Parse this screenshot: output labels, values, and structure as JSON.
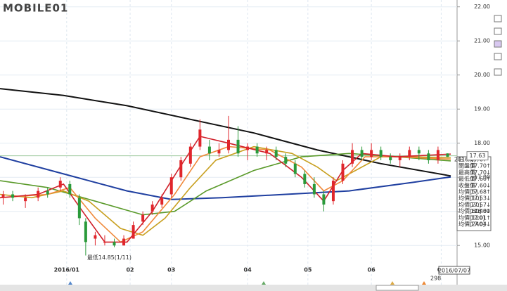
{
  "logo": "MOBILE01",
  "chart_data": {
    "type": "candlestick",
    "xlim": [
      0,
      144
    ],
    "ylim": [
      13.85,
      22.2
    ],
    "yticks": [
      {
        "value": 15,
        "label": "15.00"
      },
      {
        "value": 16,
        "label": "16.00"
      },
      {
        "value": 17,
        "label": "17.00"
      },
      {
        "value": 18,
        "label": "18.00"
      },
      {
        "value": 19,
        "label": "19.00"
      },
      {
        "value": 20,
        "label": "20.00"
      },
      {
        "value": 21,
        "label": "21.00"
      },
      {
        "value": 22,
        "label": "22.00"
      }
    ],
    "xticks": [
      {
        "value": 21,
        "label": "2016/01"
      },
      {
        "value": 41,
        "label": "02"
      },
      {
        "value": 54,
        "label": "03"
      },
      {
        "value": 78,
        "label": "04"
      },
      {
        "value": 97,
        "label": "05"
      },
      {
        "value": 117,
        "label": "06"
      },
      {
        "value": 139,
        "label": "07"
      }
    ],
    "grid": true,
    "up_color": "#e0262c",
    "down_color": "#2a9a3a",
    "candles": [
      {
        "x": 1,
        "o": 16.4,
        "h": 16.6,
        "l": 16.2,
        "c": 16.5
      },
      {
        "x": 4,
        "o": 16.5,
        "h": 16.6,
        "l": 16.3,
        "c": 16.4
      },
      {
        "x": 8,
        "o": 16.3,
        "h": 16.5,
        "l": 16.1,
        "c": 16.4
      },
      {
        "x": 12,
        "o": 16.4,
        "h": 16.7,
        "l": 16.3,
        "c": 16.6
      },
      {
        "x": 15,
        "o": 16.6,
        "h": 16.7,
        "l": 16.4,
        "c": 16.5
      },
      {
        "x": 19,
        "o": 16.7,
        "h": 17.0,
        "l": 16.6,
        "c": 16.9
      },
      {
        "x": 22,
        "o": 16.8,
        "h": 16.9,
        "l": 16.4,
        "c": 16.5
      },
      {
        "x": 25,
        "o": 16.4,
        "h": 16.5,
        "l": 15.6,
        "c": 15.8
      },
      {
        "x": 27,
        "o": 15.7,
        "h": 15.8,
        "l": 14.85,
        "c": 15.1
      },
      {
        "x": 30,
        "o": 15.2,
        "h": 15.4,
        "l": 15.0,
        "c": 15.3
      },
      {
        "x": 33,
        "o": 15.1,
        "h": 15.3,
        "l": 15.0,
        "c": 15.1
      },
      {
        "x": 36,
        "o": 15.1,
        "h": 15.2,
        "l": 14.95,
        "c": 15.0
      },
      {
        "x": 39,
        "o": 15.0,
        "h": 15.3,
        "l": 15.0,
        "c": 15.2
      },
      {
        "x": 42,
        "o": 15.2,
        "h": 15.7,
        "l": 15.2,
        "c": 15.6
      },
      {
        "x": 45,
        "o": 15.7,
        "h": 16.0,
        "l": 15.6,
        "c": 15.9
      },
      {
        "x": 48,
        "o": 16.0,
        "h": 16.3,
        "l": 15.9,
        "c": 16.2
      },
      {
        "x": 51,
        "o": 16.2,
        "h": 16.5,
        "l": 16.1,
        "c": 16.4
      },
      {
        "x": 54,
        "o": 16.5,
        "h": 17.1,
        "l": 16.4,
        "c": 17.0
      },
      {
        "x": 57,
        "o": 17.0,
        "h": 17.6,
        "l": 16.9,
        "c": 17.5
      },
      {
        "x": 60,
        "o": 17.4,
        "h": 18.0,
        "l": 17.3,
        "c": 17.9
      },
      {
        "x": 63,
        "o": 17.9,
        "h": 18.7,
        "l": 17.8,
        "c": 18.4
      },
      {
        "x": 66,
        "o": 17.9,
        "h": 18.1,
        "l": 17.5,
        "c": 17.7
      },
      {
        "x": 69,
        "o": 17.7,
        "h": 18.0,
        "l": 17.6,
        "c": 17.8
      },
      {
        "x": 72,
        "o": 17.8,
        "h": 18.8,
        "l": 17.7,
        "c": 18.1
      },
      {
        "x": 75,
        "o": 18.1,
        "h": 18.5,
        "l": 17.6,
        "c": 17.7
      },
      {
        "x": 78,
        "o": 17.8,
        "h": 18.0,
        "l": 17.5,
        "c": 17.9
      },
      {
        "x": 81,
        "o": 17.9,
        "h": 18.0,
        "l": 17.6,
        "c": 17.7
      },
      {
        "x": 84,
        "o": 17.7,
        "h": 17.9,
        "l": 17.5,
        "c": 17.8
      },
      {
        "x": 87,
        "o": 17.8,
        "h": 17.9,
        "l": 17.5,
        "c": 17.6
      },
      {
        "x": 90,
        "o": 17.6,
        "h": 17.7,
        "l": 17.3,
        "c": 17.4
      },
      {
        "x": 93,
        "o": 17.4,
        "h": 17.5,
        "l": 17.0,
        "c": 17.1
      },
      {
        "x": 96,
        "o": 17.1,
        "h": 17.2,
        "l": 16.7,
        "c": 16.8
      },
      {
        "x": 99,
        "o": 16.8,
        "h": 17.0,
        "l": 16.4,
        "c": 16.5
      },
      {
        "x": 102,
        "o": 16.5,
        "h": 16.6,
        "l": 16.0,
        "c": 16.2
      },
      {
        "x": 105,
        "o": 16.3,
        "h": 17.0,
        "l": 16.2,
        "c": 16.9
      },
      {
        "x": 108,
        "o": 16.9,
        "h": 17.5,
        "l": 16.8,
        "c": 17.4
      },
      {
        "x": 111,
        "o": 17.4,
        "h": 18.0,
        "l": 17.3,
        "c": 17.8
      },
      {
        "x": 114,
        "o": 17.8,
        "h": 17.9,
        "l": 17.5,
        "c": 17.6
      },
      {
        "x": 117,
        "o": 17.6,
        "h": 18.0,
        "l": 17.5,
        "c": 17.8
      },
      {
        "x": 120,
        "o": 17.8,
        "h": 17.9,
        "l": 17.5,
        "c": 17.6
      },
      {
        "x": 123,
        "o": 17.6,
        "h": 17.7,
        "l": 17.4,
        "c": 17.5
      },
      {
        "x": 126,
        "o": 17.5,
        "h": 17.7,
        "l": 17.3,
        "c": 17.6
      },
      {
        "x": 129,
        "o": 17.6,
        "h": 17.9,
        "l": 17.5,
        "c": 17.8
      },
      {
        "x": 132,
        "o": 17.8,
        "h": 17.9,
        "l": 17.5,
        "c": 17.7
      },
      {
        "x": 135,
        "o": 17.7,
        "h": 17.8,
        "l": 17.4,
        "c": 17.5
      },
      {
        "x": 138,
        "o": 17.5,
        "h": 17.9,
        "l": 17.4,
        "c": 17.8
      },
      {
        "x": 141,
        "o": 17.7,
        "h": 17.7,
        "l": 17.6,
        "c": 17.6
      }
    ],
    "series": [
      {
        "color": "#111111",
        "x": [
          0,
          20,
          40,
          60,
          80,
          100,
          120,
          142
        ],
        "values": [
          19.6,
          19.4,
          19.1,
          18.7,
          18.3,
          17.8,
          17.4,
          17.04
        ]
      },
      {
        "color": "#1f3fa0",
        "x": [
          0,
          20,
          40,
          54,
          70,
          90,
          110,
          130,
          142
        ],
        "values": [
          17.6,
          17.1,
          16.6,
          16.35,
          16.4,
          16.5,
          16.6,
          16.85,
          17.01
        ]
      },
      {
        "color": "#5a9a2a",
        "x": [
          0,
          15,
          30,
          45,
          55,
          65,
          80,
          95,
          110,
          125,
          142
        ],
        "values": [
          16.9,
          16.7,
          16.3,
          15.9,
          16.0,
          16.6,
          17.2,
          17.6,
          17.7,
          17.6,
          17.48
        ]
      },
      {
        "color": "#c8a020",
        "x": [
          0,
          10,
          20,
          28,
          38,
          45,
          52,
          60,
          68,
          80,
          92,
          100,
          106,
          112,
          120,
          130,
          142
        ],
        "values": [
          16.5,
          16.4,
          16.6,
          16.3,
          15.5,
          15.3,
          15.8,
          16.7,
          17.5,
          17.9,
          17.7,
          17.3,
          16.9,
          17.2,
          17.6,
          17.6,
          17.57
        ]
      },
      {
        "color": "#f08a3c",
        "x": [
          0,
          15,
          22,
          30,
          38,
          45,
          55,
          63,
          72,
          85,
          95,
          102,
          108,
          115,
          125,
          142
        ],
        "values": [
          16.4,
          16.5,
          16.7,
          15.8,
          15.1,
          15.4,
          16.5,
          17.6,
          17.9,
          17.8,
          17.3,
          16.6,
          16.9,
          17.6,
          17.6,
          17.53
        ]
      },
      {
        "color": "#d0202a",
        "x": [
          0,
          12,
          20,
          26,
          33,
          40,
          48,
          56,
          63,
          72,
          85,
          95,
          102,
          108,
          114,
          125,
          142
        ],
        "values": [
          16.4,
          16.5,
          16.8,
          16.0,
          15.1,
          15.1,
          16.0,
          17.2,
          18.2,
          18.0,
          17.7,
          17.0,
          16.3,
          17.2,
          17.7,
          17.6,
          17.68
        ]
      }
    ],
    "price_line": {
      "value": 17.63,
      "label": "17.63",
      "color": "#9cc89c"
    },
    "low_annotation": {
      "x": 27,
      "value": 14.85,
      "label": "最低14.85(1/11)"
    },
    "cursor_date": "2016/07/07",
    "scroll_count": "298"
  },
  "info_panel": {
    "rows": [
      {
        "label": "日　期",
        "value": "2016/07/07",
        "arrow": ""
      },
      {
        "label": "開盤價",
        "value": "17.70",
        "arrow": "↑"
      },
      {
        "label": "最高價",
        "value": "17.70",
        "arrow": "↓"
      },
      {
        "label": "最低價",
        "value": "17.60",
        "arrow": "↑"
      },
      {
        "label": "收盤價",
        "value": "17.60",
        "arrow": "↓"
      },
      {
        "label": "均價[5]",
        "value": "17.68",
        "arrow": "↑"
      },
      {
        "label": "均價[10]",
        "value": "17.53",
        "arrow": "↓"
      },
      {
        "label": "均價[20]",
        "value": "17.57",
        "arrow": "↓"
      },
      {
        "label": "均價[60]",
        "value": "17.48",
        "arrow": "↓"
      },
      {
        "label": "均價[120]",
        "value": "17.01",
        "arrow": "↑"
      },
      {
        "label": "均價[240]",
        "value": "17.04",
        "arrow": "↓"
      }
    ]
  }
}
